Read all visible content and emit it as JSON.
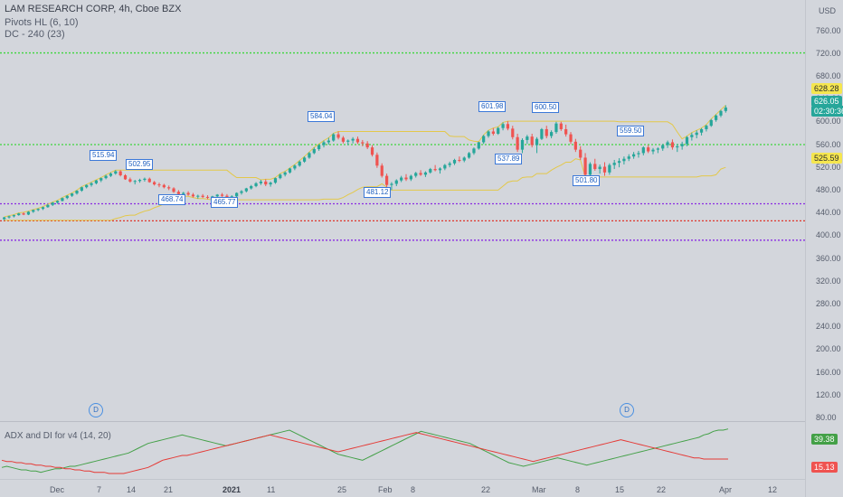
{
  "header": {
    "title": "LAM RESEARCH CORP, 4h, Cboe BZX",
    "indicators": [
      "Pivots HL (6, 10)",
      "DC - 240 (23)"
    ]
  },
  "y_axis": {
    "currency": "USD",
    "ticks": [
      "760.00",
      "720.00",
      "680.00",
      "640.00",
      "600.00",
      "560.00",
      "520.00",
      "480.00",
      "440.00",
      "400.00",
      "360.00",
      "320.00",
      "280.00",
      "240.00",
      "200.00",
      "160.00",
      "120.00",
      "80.00"
    ]
  },
  "price_tags": {
    "upper_dc": "628.28",
    "last_price": "626.05",
    "countdown": "02:30:36",
    "lower_dc": "525.59"
  },
  "x_axis": {
    "labels": [
      "Dec",
      "7",
      "14",
      "21",
      "2021",
      "11",
      "25",
      "Feb",
      "8",
      "22",
      "Mar",
      "8",
      "15",
      "22",
      "Apr",
      "12"
    ]
  },
  "pivots": [
    "515.94",
    "502.95",
    "468.74",
    "465.77",
    "584.04",
    "481.12",
    "601.98",
    "537.89",
    "600.50",
    "501.80",
    "559.50"
  ],
  "markers": [
    "D",
    "D"
  ],
  "sub_pane": {
    "title": "ADX and DI for v4 (14, 20)",
    "plus_di_value": "39.38",
    "minus_di_value": "15.13"
  },
  "colors": {
    "up": "#26a69a",
    "down": "#ef5350",
    "dc_band": "#e3c84a",
    "green_line": "#3ed63e",
    "purple_line": "#8a2be2",
    "red_line": "#e0342a",
    "plus_di": "#43a047",
    "minus_di": "#e53935",
    "last_price_bg": "#26a69a",
    "upper_tag_bg": "#f5e64f"
  },
  "chart_data": {
    "type": "candlestick",
    "y_range": [
      80,
      780
    ],
    "bars": [
      [
        430,
        434,
        428,
        433
      ],
      [
        433,
        436,
        431,
        435
      ],
      [
        435,
        438,
        433,
        437
      ],
      [
        437,
        441,
        436,
        440
      ],
      [
        440,
        442,
        437,
        438
      ],
      [
        438,
        444,
        437,
        443
      ],
      [
        443,
        447,
        441,
        446
      ],
      [
        446,
        449,
        444,
        448
      ],
      [
        448,
        452,
        446,
        451
      ],
      [
        451,
        456,
        450,
        455
      ],
      [
        455,
        460,
        453,
        459
      ],
      [
        459,
        463,
        457,
        462
      ],
      [
        462,
        468,
        461,
        467
      ],
      [
        467,
        472,
        465,
        471
      ],
      [
        471,
        476,
        469,
        475
      ],
      [
        475,
        481,
        473,
        480
      ],
      [
        480,
        487,
        478,
        486
      ],
      [
        486,
        491,
        484,
        490
      ],
      [
        490,
        495,
        487,
        493
      ],
      [
        493,
        499,
        491,
        498
      ],
      [
        498,
        503,
        495,
        502
      ],
      [
        502,
        508,
        500,
        506
      ],
      [
        506,
        512,
        504,
        510
      ],
      [
        510,
        516,
        508,
        514
      ],
      [
        514,
        516,
        505,
        507
      ],
      [
        507,
        509,
        499,
        500
      ],
      [
        500,
        503,
        494,
        496
      ],
      [
        496,
        499,
        491,
        497
      ],
      [
        497,
        501,
        494,
        499
      ],
      [
        499,
        503,
        496,
        501
      ],
      [
        501,
        503,
        494,
        495
      ],
      [
        495,
        497,
        489,
        491
      ],
      [
        491,
        494,
        486,
        490
      ],
      [
        490,
        492,
        484,
        486
      ],
      [
        486,
        489,
        481,
        484
      ],
      [
        484,
        486,
        476,
        478
      ],
      [
        478,
        481,
        472,
        474
      ],
      [
        474,
        478,
        470,
        476
      ],
      [
        476,
        479,
        471,
        473
      ],
      [
        473,
        476,
        468,
        470
      ],
      [
        470,
        473,
        466,
        471
      ],
      [
        471,
        474,
        467,
        469
      ],
      [
        469,
        472,
        465,
        468
      ],
      [
        468,
        471,
        464,
        470
      ],
      [
        470,
        474,
        467,
        473
      ],
      [
        473,
        476,
        469,
        471
      ],
      [
        471,
        474,
        466,
        468
      ],
      [
        468,
        472,
        465,
        470
      ],
      [
        470,
        477,
        468,
        476
      ],
      [
        476,
        481,
        473,
        479
      ],
      [
        479,
        485,
        477,
        484
      ],
      [
        484,
        490,
        482,
        488
      ],
      [
        488,
        495,
        486,
        493
      ],
      [
        493,
        499,
        490,
        496
      ],
      [
        496,
        500,
        488,
        491
      ],
      [
        491,
        496,
        487,
        494
      ],
      [
        494,
        503,
        492,
        502
      ],
      [
        502,
        510,
        500,
        508
      ],
      [
        508,
        514,
        505,
        512
      ],
      [
        512,
        520,
        510,
        519
      ],
      [
        519,
        526,
        516,
        524
      ],
      [
        524,
        533,
        522,
        531
      ],
      [
        531,
        540,
        529,
        538
      ],
      [
        538,
        548,
        536,
        546
      ],
      [
        546,
        556,
        544,
        553
      ],
      [
        553,
        562,
        550,
        560
      ],
      [
        560,
        568,
        556,
        565
      ],
      [
        565,
        573,
        561,
        568
      ],
      [
        568,
        581,
        566,
        579
      ],
      [
        579,
        584,
        570,
        573
      ],
      [
        573,
        576,
        563,
        566
      ],
      [
        566,
        570,
        560,
        568
      ],
      [
        568,
        574,
        563,
        571
      ],
      [
        571,
        575,
        562,
        565
      ],
      [
        565,
        569,
        558,
        563
      ],
      [
        563,
        567,
        553,
        556
      ],
      [
        556,
        560,
        540,
        543
      ],
      [
        543,
        547,
        520,
        524
      ],
      [
        524,
        528,
        503,
        506
      ],
      [
        506,
        510,
        486,
        490
      ],
      [
        490,
        495,
        481,
        492
      ],
      [
        492,
        500,
        488,
        498
      ],
      [
        498,
        506,
        495,
        503
      ],
      [
        503,
        509,
        497,
        500
      ],
      [
        500,
        508,
        497,
        506
      ],
      [
        506,
        513,
        503,
        511
      ],
      [
        511,
        516,
        506,
        508
      ],
      [
        508,
        514,
        504,
        512
      ],
      [
        512,
        520,
        510,
        518
      ],
      [
        518,
        525,
        514,
        516
      ],
      [
        516,
        521,
        510,
        519
      ],
      [
        519,
        527,
        516,
        525
      ],
      [
        525,
        531,
        521,
        528
      ],
      [
        528,
        536,
        525,
        534
      ],
      [
        534,
        540,
        530,
        533
      ],
      [
        533,
        540,
        530,
        538
      ],
      [
        538,
        548,
        536,
        546
      ],
      [
        546,
        556,
        543,
        554
      ],
      [
        554,
        566,
        552,
        565
      ],
      [
        565,
        578,
        562,
        576
      ],
      [
        576,
        586,
        573,
        584
      ],
      [
        584,
        590,
        577,
        580
      ],
      [
        580,
        592,
        578,
        590
      ],
      [
        590,
        600,
        586,
        597
      ],
      [
        597,
        602,
        586,
        589
      ],
      [
        589,
        594,
        570,
        574
      ],
      [
        574,
        580,
        548,
        552
      ],
      [
        552,
        572,
        546,
        569
      ],
      [
        569,
        578,
        562,
        575
      ],
      [
        575,
        580,
        556,
        560
      ],
      [
        560,
        574,
        546,
        571
      ],
      [
        571,
        590,
        569,
        588
      ],
      [
        588,
        594,
        572,
        576
      ],
      [
        576,
        586,
        572,
        583
      ],
      [
        583,
        601,
        580,
        598
      ],
      [
        598,
        601,
        585,
        588
      ],
      [
        588,
        596,
        575,
        579
      ],
      [
        579,
        583,
        562,
        566
      ],
      [
        566,
        571,
        548,
        552
      ],
      [
        552,
        558,
        534,
        538
      ],
      [
        538,
        546,
        504,
        508
      ],
      [
        508,
        530,
        504,
        527
      ],
      [
        527,
        536,
        515,
        518
      ],
      [
        518,
        526,
        510,
        522
      ],
      [
        522,
        530,
        506,
        512
      ],
      [
        512,
        528,
        508,
        525
      ],
      [
        525,
        534,
        518,
        529
      ],
      [
        529,
        537,
        521,
        532
      ],
      [
        532,
        540,
        526,
        536
      ],
      [
        536,
        544,
        532,
        540
      ],
      [
        540,
        548,
        536,
        544
      ],
      [
        544,
        550,
        538,
        546
      ],
      [
        546,
        558,
        542,
        556
      ],
      [
        556,
        560,
        546,
        549
      ],
      [
        549,
        555,
        544,
        552
      ],
      [
        552,
        556,
        546,
        554
      ],
      [
        554,
        562,
        550,
        560
      ],
      [
        560,
        568,
        555,
        565
      ],
      [
        565,
        570,
        552,
        556
      ],
      [
        556,
        562,
        548,
        558
      ],
      [
        558,
        566,
        552,
        562
      ],
      [
        562,
        576,
        558,
        574
      ],
      [
        574,
        582,
        568,
        578
      ],
      [
        578,
        586,
        572,
        582
      ],
      [
        582,
        590,
        577,
        588
      ],
      [
        588,
        596,
        584,
        594
      ],
      [
        594,
        606,
        592,
        604
      ],
      [
        604,
        614,
        601,
        612
      ],
      [
        612,
        622,
        609,
        620
      ],
      [
        620,
        630,
        617,
        626
      ]
    ],
    "pivots": [
      {
        "label": "515.94",
        "type": "high"
      },
      {
        "label": "502.95",
        "type": "high"
      },
      {
        "label": "468.74",
        "type": "low"
      },
      {
        "label": "465.77",
        "type": "low"
      },
      {
        "label": "584.04",
        "type": "high"
      },
      {
        "label": "481.12",
        "type": "low"
      },
      {
        "label": "601.98",
        "type": "high"
      },
      {
        "label": "537.89",
        "type": "low"
      },
      {
        "label": "600.50",
        "type": "high"
      },
      {
        "label": "501.80",
        "type": "low"
      },
      {
        "label": "559.50",
        "type": "high"
      }
    ],
    "horizontal_lines": [
      {
        "price": 722,
        "color": "green_line",
        "style": "dotted"
      },
      {
        "price": 561,
        "color": "green_line",
        "style": "dotted"
      },
      {
        "price": 457,
        "color": "purple_line",
        "style": "dotted"
      },
      {
        "price": 427,
        "color": "red_line",
        "style": "dotted"
      },
      {
        "price": 393,
        "color": "purple_line",
        "style": "dotted"
      }
    ],
    "adx_plus_di": [
      8,
      9,
      8,
      7,
      6,
      6,
      5,
      5,
      4,
      5,
      6,
      7,
      7,
      8,
      9,
      9,
      10,
      11,
      12,
      13,
      14,
      15,
      16,
      17,
      18,
      19,
      20,
      22,
      24,
      26,
      28,
      29,
      30,
      31,
      32,
      33,
      34,
      35,
      34,
      33,
      32,
      31,
      30,
      29,
      28,
      27,
      26,
      27,
      28,
      29,
      30,
      31,
      32,
      33,
      34,
      35,
      36,
      37,
      38,
      39,
      37,
      35,
      33,
      31,
      29,
      27,
      25,
      23,
      21,
      19,
      18,
      17,
      16,
      15,
      14,
      16,
      18,
      20,
      22,
      24,
      26,
      28,
      30,
      32,
      34,
      36,
      38,
      37,
      36,
      35,
      34,
      33,
      32,
      31,
      30,
      29,
      28,
      26,
      24,
      22,
      20,
      18,
      16,
      14,
      12,
      11,
      10,
      9,
      10,
      11,
      12,
      13,
      14,
      15,
      16,
      15,
      14,
      13,
      12,
      11,
      10,
      11,
      12,
      13,
      14,
      15,
      16,
      17,
      18,
      19,
      20,
      21,
      22,
      23,
      24,
      25,
      26,
      27,
      28,
      29,
      30,
      31,
      32,
      33,
      35,
      36,
      38,
      39,
      39,
      40
    ],
    "adx_minus_di": [
      14,
      13,
      13,
      12,
      12,
      11,
      11,
      10,
      10,
      9,
      9,
      8,
      8,
      7,
      7,
      6,
      6,
      5,
      5,
      4,
      4,
      4,
      3,
      3,
      3,
      3,
      4,
      5,
      6,
      7,
      8,
      10,
      12,
      14,
      15,
      16,
      17,
      18,
      18,
      19,
      20,
      21,
      22,
      23,
      24,
      25,
      26,
      27,
      28,
      29,
      30,
      31,
      32,
      33,
      34,
      35,
      34,
      33,
      32,
      31,
      30,
      29,
      28,
      27,
      26,
      25,
      24,
      23,
      22,
      21,
      22,
      23,
      24,
      25,
      26,
      27,
      28,
      29,
      30,
      31,
      32,
      33,
      34,
      35,
      36,
      37,
      36,
      35,
      34,
      33,
      32,
      31,
      30,
      29,
      28,
      27,
      26,
      25,
      24,
      23,
      22,
      21,
      20,
      19,
      18,
      17,
      16,
      15,
      14,
      13,
      14,
      15,
      16,
      17,
      18,
      19,
      20,
      21,
      22,
      23,
      24,
      25,
      26,
      27,
      28,
      29,
      30,
      31,
      30,
      29,
      28,
      27,
      26,
      25,
      24,
      23,
      22,
      21,
      20,
      19,
      18,
      17,
      16,
      16,
      15,
      15,
      15,
      15,
      15,
      15
    ]
  }
}
